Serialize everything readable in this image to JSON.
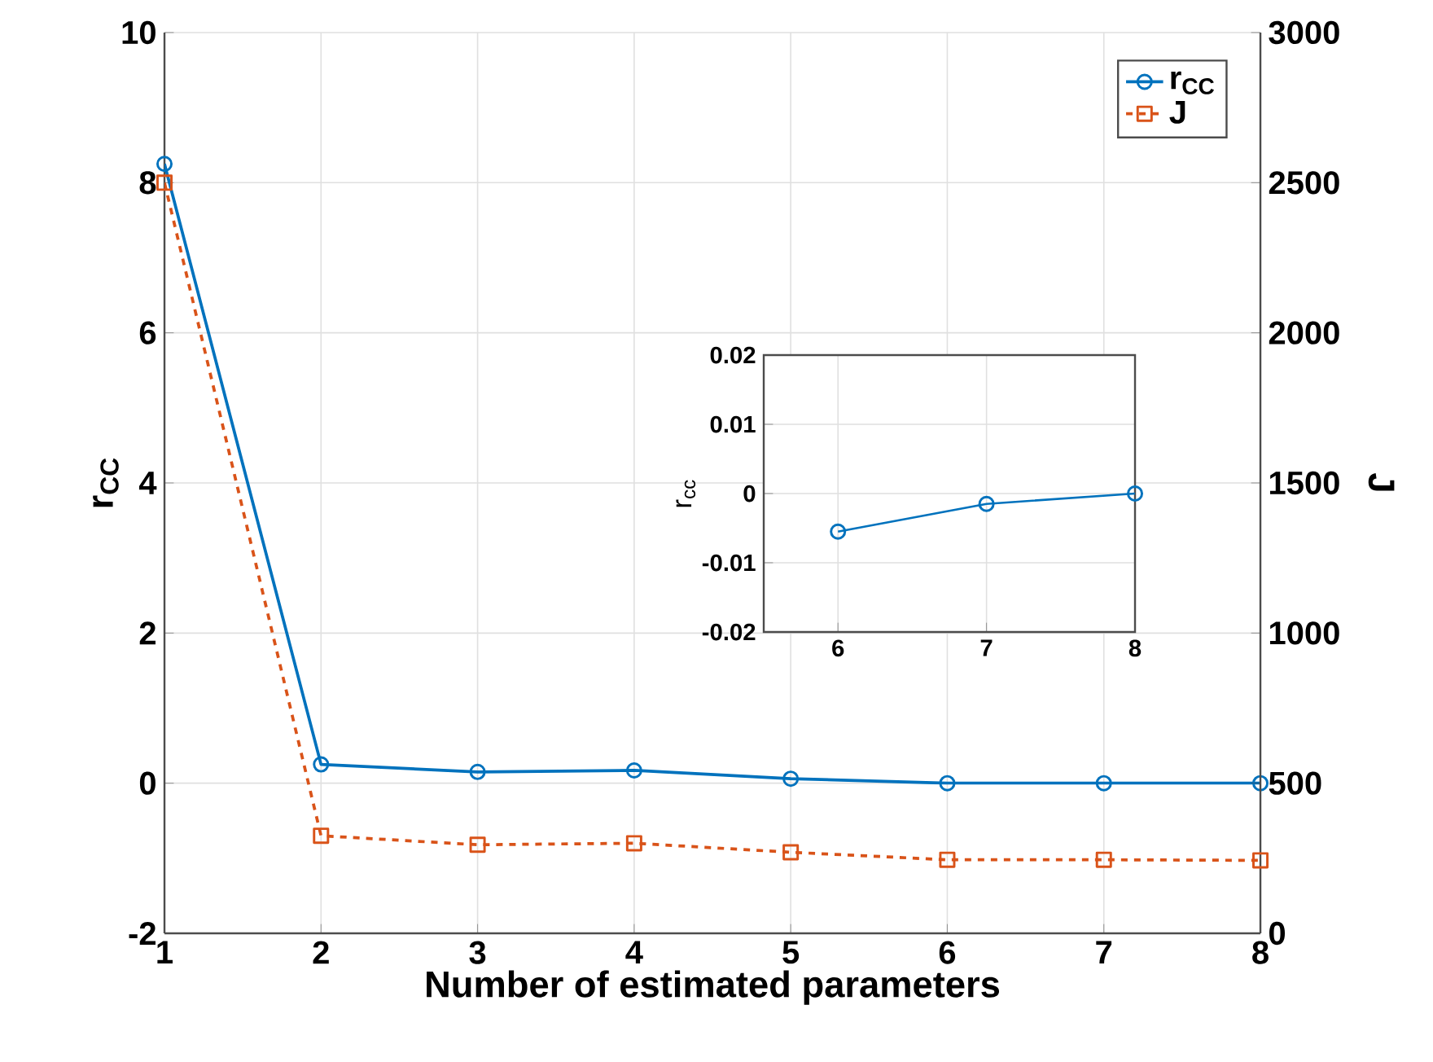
{
  "chart_data": [
    {
      "type": "line",
      "xlabel": "Number of estimated parameters",
      "ylabel": "r$_{CC}$",
      "y2label": "J",
      "x": [
        1,
        2,
        3,
        4,
        5,
        6,
        7,
        8
      ],
      "xlim": [
        1,
        8
      ],
      "xticks": [
        1,
        2,
        3,
        4,
        5,
        6,
        7,
        8
      ],
      "ylim": [
        -2,
        10
      ],
      "yticks": [
        -2,
        0,
        2,
        4,
        6,
        8,
        10
      ],
      "y2lim": [
        0,
        3000
      ],
      "y2ticks": [
        0,
        500,
        1000,
        1500,
        2000,
        2500,
        3000
      ],
      "grid": true,
      "legend": "top right",
      "series": [
        {
          "name": "r$_{CC}$",
          "color": "#0072bd",
          "marker": "circle",
          "line_style": "solid",
          "values": [
            8.25,
            0.25,
            0.15,
            0.17,
            0.06,
            0,
            0,
            0
          ]
        },
        {
          "name": "J",
          "color": "#d95319",
          "marker": "square",
          "line_style": "dashed",
          "axis": "y2",
          "values": [
            2500,
            325,
            295,
            300,
            270,
            245,
            245,
            243
          ]
        }
      ]
    },
    {
      "type": "line",
      "ylabel": "r$_{cc}$",
      "x": [
        6,
        7,
        8
      ],
      "xlim": [
        5.5,
        8
      ],
      "xticks": [
        6,
        7,
        8
      ],
      "ylim": [
        -0.02,
        0.02
      ],
      "yticks": [
        -0.02,
        -0.01,
        0,
        0.01,
        0.02
      ],
      "grid": true,
      "series": [
        {
          "color": "#0072bd",
          "marker": "circle",
          "line_style": "solid",
          "values": [
            -0.0055,
            -0.0015,
            0.0
          ]
        }
      ]
    }
  ]
}
